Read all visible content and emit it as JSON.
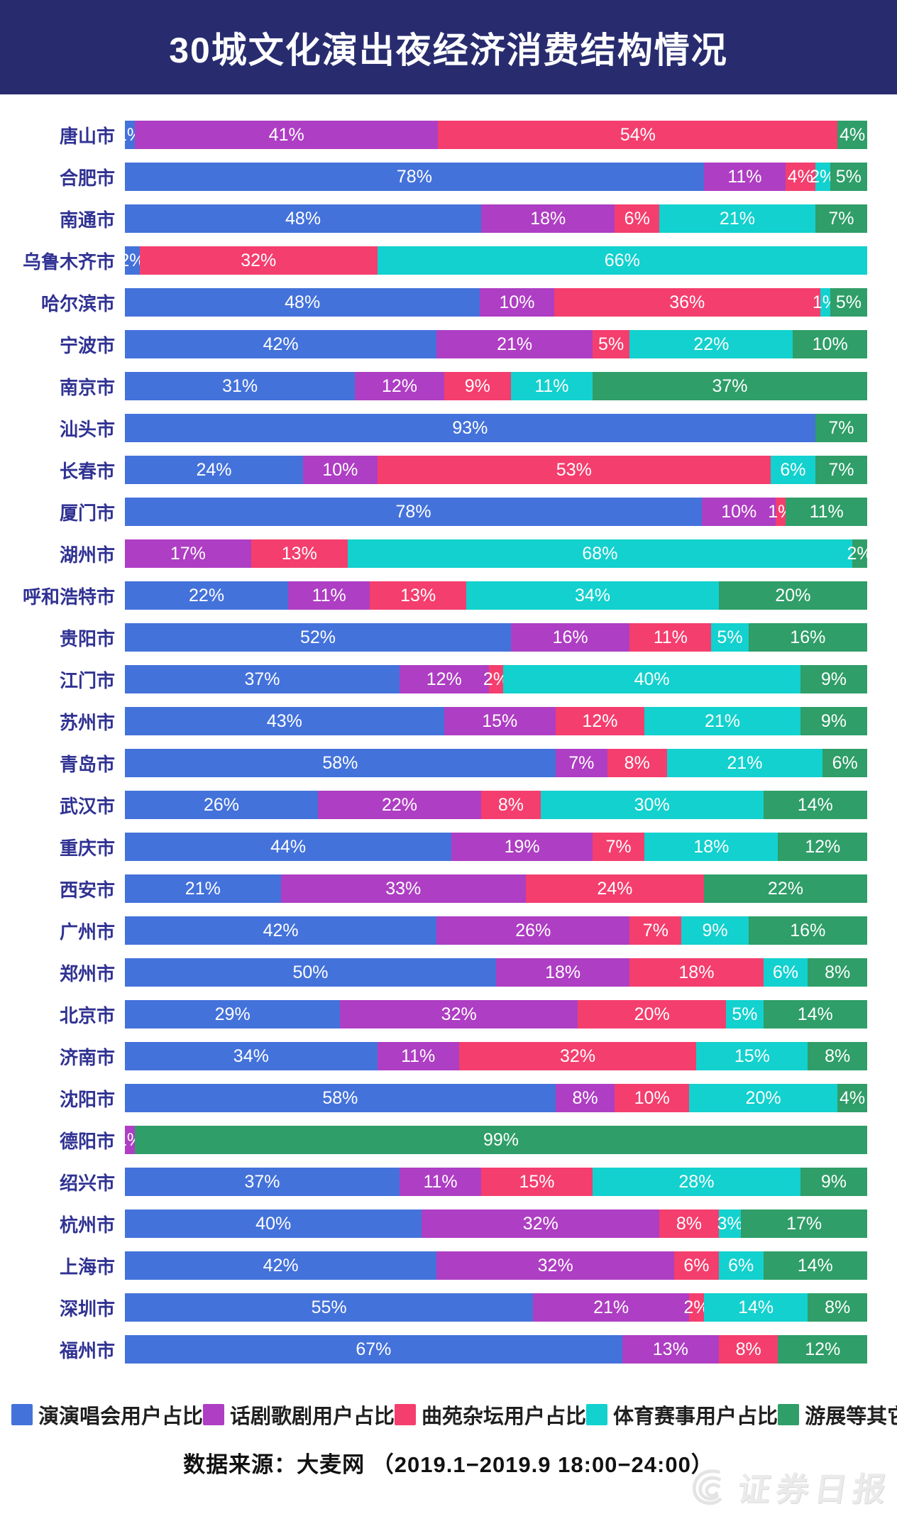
{
  "title": "30城文化演出夜经济消费结构情况",
  "source_note": "数据来源：大麦网 （2019.1−2019.9 18:00−24:00）",
  "watermark_text": "证券日报",
  "colors": {
    "banner_bg": "#282C6F",
    "city_label": "#303293",
    "series": [
      "#4472DB",
      "#AE3EC3",
      "#F43E6E",
      "#12D1CE",
      "#2F9E68"
    ]
  },
  "chart_data": {
    "type": "bar",
    "stacked": true,
    "orientation": "horizontal",
    "unit": "%",
    "xlim": [
      0,
      100
    ],
    "grid": false,
    "legend_position": "bottom",
    "title": "30城文化演出夜经济消费结构情况",
    "categories": [
      "唐山市",
      "合肥市",
      "南通市",
      "乌鲁木齐市",
      "哈尔滨市",
      "宁波市",
      "南京市",
      "汕头市",
      "长春市",
      "厦门市",
      "湖州市",
      "呼和浩特市",
      "贵阳市",
      "江门市",
      "苏州市",
      "青岛市",
      "武汉市",
      "重庆市",
      "西安市",
      "广州市",
      "郑州市",
      "北京市",
      "济南市",
      "沈阳市",
      "德阳市",
      "绍兴市",
      "杭州市",
      "上海市",
      "深圳市",
      "福州市"
    ],
    "series": [
      {
        "name": "演演唱会用户占比",
        "color": "#4472DB",
        "values": [
          1,
          78,
          48,
          2,
          48,
          42,
          31,
          93,
          24,
          78,
          0,
          22,
          52,
          37,
          43,
          58,
          26,
          44,
          21,
          42,
          50,
          29,
          34,
          58,
          0,
          37,
          40,
          42,
          55,
          67
        ]
      },
      {
        "name": "话剧歌剧用户占比",
        "color": "#AE3EC3",
        "values": [
          41,
          11,
          18,
          0,
          10,
          21,
          12,
          0,
          10,
          10,
          17,
          11,
          16,
          12,
          15,
          7,
          22,
          19,
          33,
          26,
          18,
          32,
          11,
          8,
          1,
          11,
          32,
          32,
          21,
          13
        ]
      },
      {
        "name": "曲苑杂坛用户占比",
        "color": "#F43E6E",
        "values": [
          54,
          4,
          6,
          32,
          36,
          5,
          9,
          0,
          53,
          1,
          13,
          13,
          11,
          2,
          12,
          8,
          8,
          7,
          24,
          7,
          18,
          20,
          32,
          10,
          0,
          15,
          8,
          6,
          2,
          8
        ]
      },
      {
        "name": "体育赛事用户占比",
        "color": "#12D1CE",
        "values": [
          0,
          2,
          21,
          66,
          1,
          22,
          11,
          0,
          6,
          0,
          68,
          34,
          5,
          40,
          21,
          21,
          30,
          18,
          0,
          9,
          6,
          5,
          15,
          20,
          0,
          28,
          3,
          6,
          14,
          0
        ]
      },
      {
        "name": "游展等其它用户占比",
        "color": "#2F9E68",
        "values": [
          4,
          5,
          7,
          0,
          5,
          10,
          37,
          7,
          7,
          11,
          2,
          20,
          16,
          9,
          9,
          6,
          14,
          12,
          22,
          16,
          8,
          14,
          8,
          4,
          99,
          9,
          17,
          14,
          8,
          12
        ]
      }
    ]
  }
}
